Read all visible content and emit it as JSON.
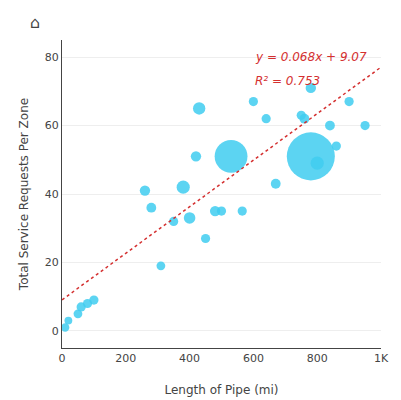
{
  "chart_data": {
    "type": "scatter",
    "xlabel": "Length of Pipe (mi)",
    "ylabel": "Total Service Requests Per Zone",
    "xlim": [
      0,
      1000
    ],
    "xticks": [
      0,
      200,
      400,
      600,
      800,
      {
        "value": 1000,
        "label": "1K"
      }
    ],
    "ylim": [
      -5,
      85
    ],
    "yticks": [
      0,
      20,
      40,
      60,
      80
    ],
    "grid": true,
    "series": [
      {
        "type": "scatter",
        "color": "#40ccf0",
        "marker": "circle",
        "x": [
          10,
          20,
          50,
          60,
          80,
          100,
          260,
          280,
          310,
          350,
          380,
          400,
          420,
          430,
          450,
          480,
          500,
          530,
          565,
          600,
          640,
          670,
          750,
          760,
          780,
          800,
          780,
          840,
          860,
          900,
          950
        ],
        "values": [
          1,
          3,
          5,
          7,
          8,
          9,
          41,
          36,
          19,
          32,
          42,
          33,
          51,
          65,
          27,
          35,
          35,
          51,
          35,
          67,
          62,
          43,
          63,
          62,
          51,
          49,
          71,
          60,
          54,
          67,
          60
        ],
        "size": [
          18,
          16,
          20,
          22,
          22,
          22,
          28,
          25,
          20,
          22,
          45,
          35,
          28,
          40,
          22,
          28,
          22,
          280,
          22,
          22,
          22,
          25,
          22,
          25,
          600,
          45,
          28,
          25,
          22,
          22,
          22
        ]
      },
      {
        "type": "line",
        "color": "#d43030",
        "line_style": "dotted",
        "x": [
          0,
          1000
        ],
        "values": [
          9.07,
          77.07
        ]
      }
    ],
    "annotations": [
      {
        "text": "y = 0.068x + 9.07",
        "color": "#d43030"
      },
      {
        "text": "R² = 0.753",
        "color": "#d43030"
      },
      {
        "text": "⌂"
      }
    ]
  }
}
